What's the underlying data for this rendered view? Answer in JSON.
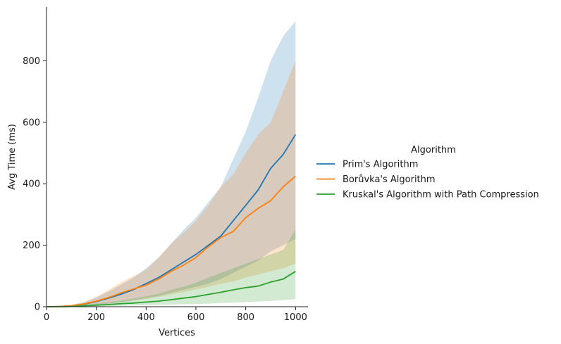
{
  "chart_data": {
    "type": "line",
    "xlabel": "Vertices",
    "ylabel": "Avg Time (ms)",
    "xlim": [
      0,
      1050
    ],
    "ylim": [
      0,
      975
    ],
    "xticks": [
      0,
      200,
      400,
      600,
      800,
      1000
    ],
    "yticks": [
      0,
      200,
      400,
      600,
      800
    ],
    "grid": false,
    "legend": {
      "title": "Algorithm",
      "placement": "right",
      "entries": [
        "Prim's Algorithm",
        "Borůvka's Algorithm",
        "Kruskal's Algorithm with Path Compression"
      ]
    },
    "x": [
      0,
      50,
      100,
      150,
      200,
      250,
      300,
      350,
      400,
      450,
      500,
      550,
      600,
      650,
      700,
      750,
      800,
      850,
      900,
      950,
      1000
    ],
    "series": [
      {
        "name": "Prim's Algorithm",
        "color": "#1f77b4",
        "values": [
          0,
          1,
          3,
          8,
          17,
          28,
          41,
          56,
          75,
          95,
          120,
          145,
          170,
          200,
          230,
          280,
          330,
          380,
          450,
          495,
          560
        ],
        "ci_low": [
          0,
          0,
          1,
          3,
          6,
          10,
          15,
          21,
          28,
          35,
          45,
          55,
          65,
          75,
          90,
          110,
          130,
          150,
          180,
          200,
          220
        ],
        "ci_high": [
          0,
          2,
          6,
          14,
          30,
          50,
          72,
          95,
          125,
          160,
          205,
          250,
          290,
          340,
          390,
          480,
          570,
          680,
          800,
          880,
          930
        ]
      },
      {
        "name": "Borůvka's Algorithm",
        "color": "#ff7f0e",
        "values": [
          0,
          1,
          3,
          9,
          18,
          30,
          45,
          58,
          70,
          90,
          115,
          135,
          160,
          195,
          225,
          245,
          290,
          320,
          345,
          390,
          425
        ],
        "ci_low": [
          0,
          0,
          1,
          3,
          6,
          10,
          15,
          20,
          25,
          32,
          40,
          48,
          56,
          65,
          75,
          82,
          95,
          105,
          115,
          125,
          140
        ],
        "ci_high": [
          0,
          2,
          6,
          15,
          32,
          55,
          80,
          100,
          120,
          160,
          205,
          240,
          280,
          330,
          390,
          430,
          500,
          560,
          600,
          700,
          800
        ]
      },
      {
        "name": "Kruskal's Algorithm with Path Compression",
        "color": "#2ca02c",
        "values": [
          0,
          0,
          1,
          3,
          5,
          7,
          10,
          12,
          15,
          18,
          23,
          28,
          33,
          40,
          47,
          55,
          62,
          67,
          80,
          90,
          115
        ],
        "ci_low": [
          0,
          0,
          0,
          1,
          1,
          2,
          3,
          4,
          5,
          6,
          7,
          8,
          9,
          10,
          12,
          13,
          15,
          17,
          19,
          21,
          25
        ],
        "ci_high": [
          0,
          1,
          3,
          6,
          10,
          15,
          20,
          27,
          34,
          42,
          55,
          65,
          78,
          95,
          110,
          125,
          140,
          155,
          170,
          185,
          250
        ]
      }
    ]
  }
}
